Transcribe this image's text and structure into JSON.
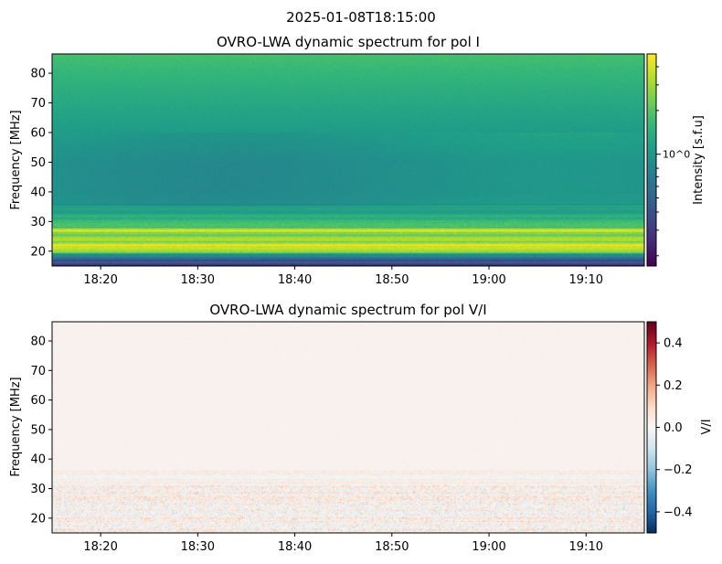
{
  "suptitle": "2025-01-08T18:15:00",
  "chart_data": [
    {
      "type": "heatmap",
      "title": "OVRO-LWA dynamic spectrum for pol I",
      "xlabel": "",
      "ylabel": "Frequency [MHz]",
      "xlim": [
        "18:15",
        "19:16"
      ],
      "ylim": [
        15,
        86.5
      ],
      "xticks": [
        "18:20",
        "18:30",
        "18:40",
        "18:50",
        "19:00",
        "19:10"
      ],
      "yticks": [
        20,
        30,
        40,
        50,
        60,
        70,
        80
      ],
      "colormap": "viridis",
      "colorbar": {
        "label": "Intensity [s.f.u]",
        "scale": "log",
        "range": [
          0.17,
          4.9
        ],
        "major_ticks": [
          {
            "value": 1,
            "label": "10^0"
          }
        ],
        "minor_ticks": [
          0.2,
          0.3,
          0.4,
          0.5,
          0.6,
          0.7,
          0.8,
          2,
          3,
          4
        ]
      },
      "frequency_profile": {
        "frequency_mhz": [
          15,
          16,
          17,
          18,
          19,
          20,
          21,
          22,
          23,
          24,
          25,
          26,
          27,
          28,
          30,
          32,
          35,
          40,
          50,
          60,
          70,
          80,
          86
        ],
        "colormap_level": [
          0.1,
          0.3,
          0.2,
          0.45,
          0.55,
          0.9,
          0.97,
          0.95,
          0.8,
          0.85,
          0.78,
          0.8,
          0.99,
          0.72,
          0.68,
          0.6,
          0.52,
          0.5,
          0.5,
          0.55,
          0.6,
          0.66,
          0.7
        ]
      }
    },
    {
      "type": "heatmap",
      "title": "OVRO-LWA dynamic spectrum for pol V/I",
      "xlabel": "",
      "ylabel": "Frequency [MHz]",
      "xlim": [
        "18:15",
        "19:16"
      ],
      "ylim": [
        15,
        86.5
      ],
      "xticks": [
        "18:20",
        "18:30",
        "18:40",
        "18:50",
        "19:00",
        "19:10"
      ],
      "yticks": [
        20,
        30,
        40,
        50,
        60,
        70,
        80
      ],
      "colormap": "RdBu_r",
      "colorbar": {
        "label": "V/I",
        "scale": "linear",
        "range": [
          -0.5,
          0.5
        ],
        "ticks": [
          0.4,
          0.2,
          0.0,
          -0.2,
          -0.4
        ],
        "tick_labels": [
          "0.4",
          "0.2",
          "0.0",
          "−0.2",
          "−0.4"
        ]
      },
      "typical_value": 0.02,
      "noisy_band_mhz": [
        15,
        36
      ]
    }
  ]
}
